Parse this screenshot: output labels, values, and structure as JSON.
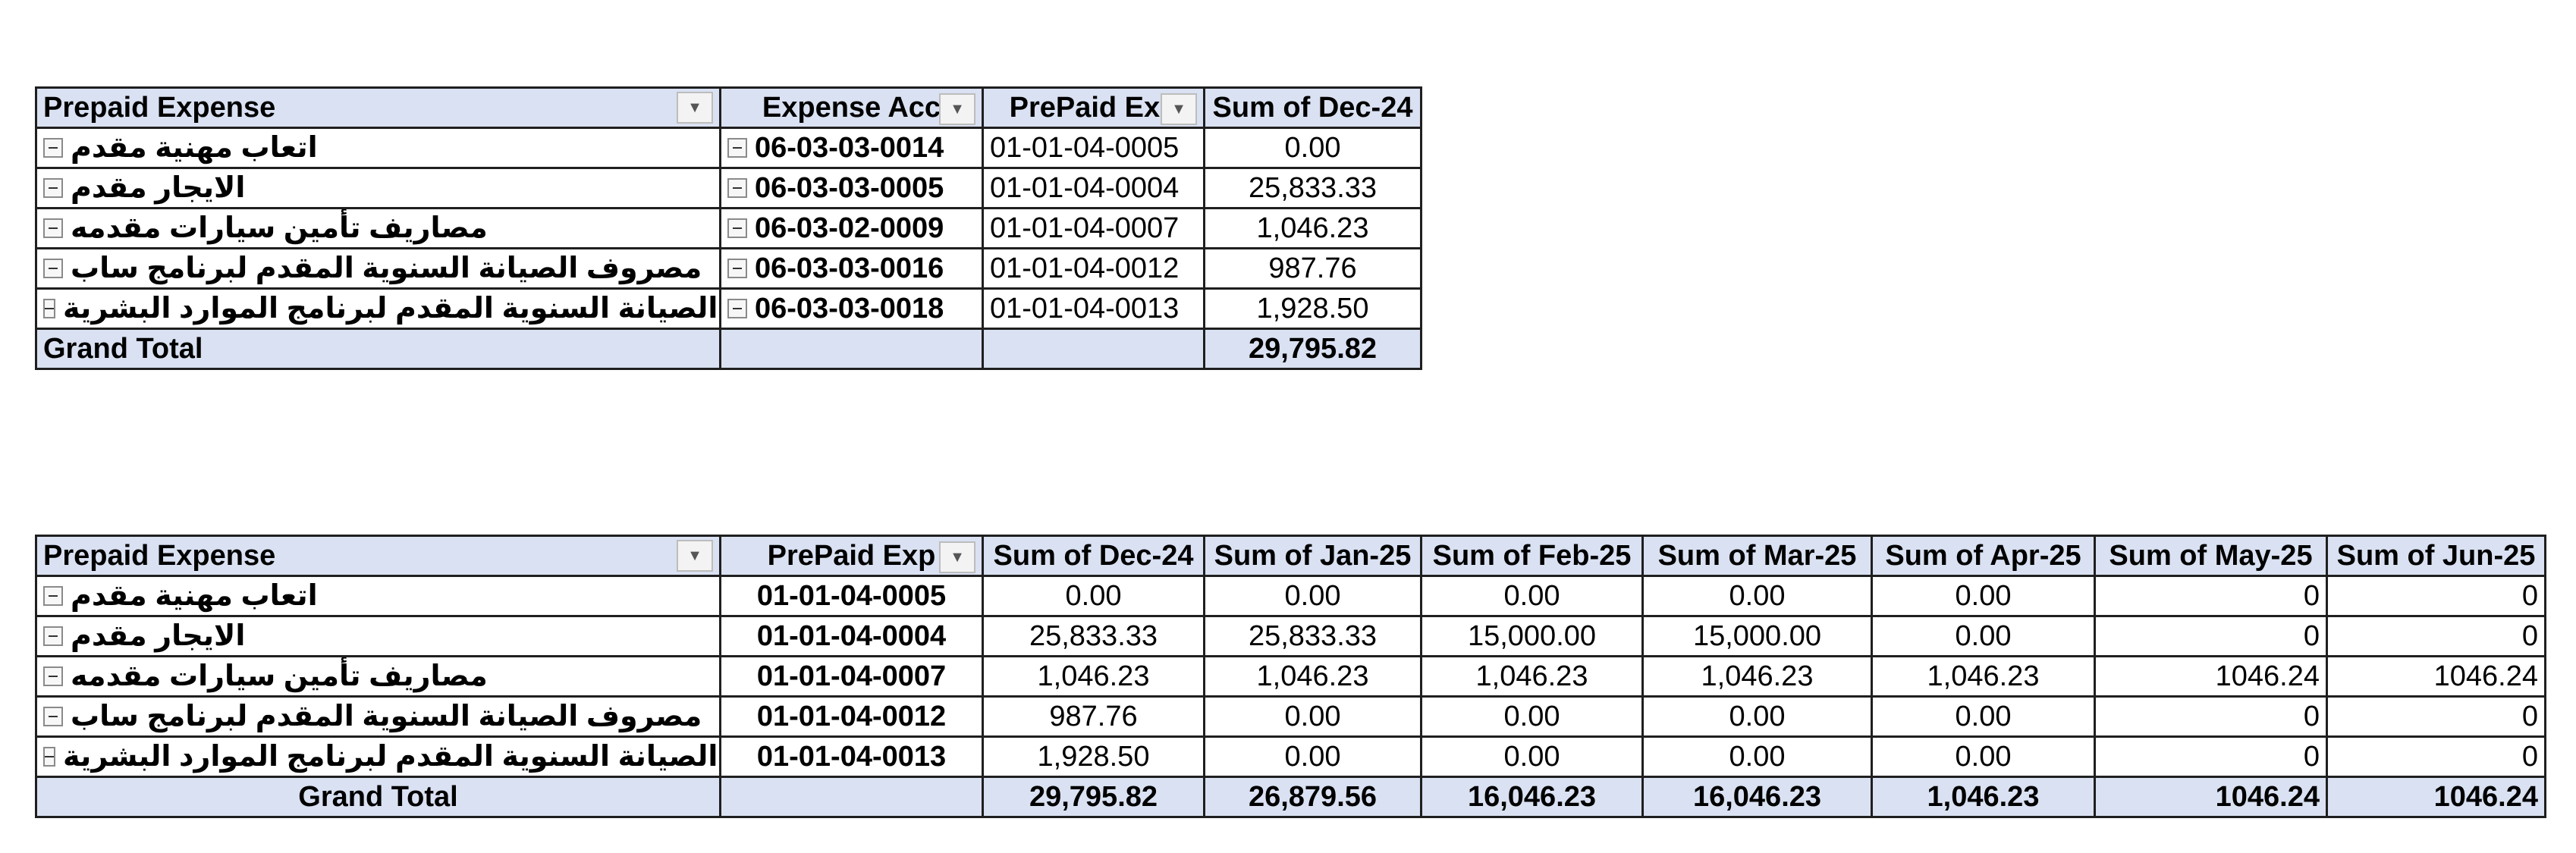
{
  "table1": {
    "headers": [
      "Prepaid Expense",
      "Expense Acc",
      "PrePaid Exp",
      "Sum of Dec-24"
    ],
    "rows": [
      {
        "name": "اتعاب مهنية مقدم",
        "acc": "06-03-03-0014",
        "prepaid": "01-01-04-0005",
        "dec24": "0.00"
      },
      {
        "name": "الايجار مقدم",
        "acc": "06-03-03-0005",
        "prepaid": "01-01-04-0004",
        "dec24": "25,833.33"
      },
      {
        "name": "مصاريف تأمين سيارات مقدمه",
        "acc": "06-03-02-0009",
        "prepaid": "01-01-04-0007",
        "dec24": "1,046.23"
      },
      {
        "name": "مصروف الصيانة السنوية  المقدم  لبرنامج ساب",
        "acc": "06-03-03-0016",
        "prepaid": "01-01-04-0012",
        "dec24": "987.76"
      },
      {
        "name": "مصروف الصيانة السنوية المقدم لبرنامج الموارد البشرية",
        "acc": "06-03-03-0018",
        "prepaid": "01-01-04-0013",
        "dec24": "1,928.50"
      }
    ],
    "total": {
      "label": "Grand Total",
      "dec24": "29,795.82"
    }
  },
  "table2": {
    "headers": [
      "Prepaid Expense",
      "PrePaid Exp",
      "Sum of Dec-24",
      "Sum of Jan-25",
      "Sum of Feb-25",
      "Sum of Mar-25",
      "Sum of Apr-25",
      "Sum of May-25",
      "Sum of Jun-25"
    ],
    "rows": [
      {
        "name": "اتعاب مهنية مقدم",
        "prepaid": "01-01-04-0005",
        "v": [
          "0.00",
          "0.00",
          "0.00",
          "0.00",
          "0.00",
          "0",
          "0"
        ]
      },
      {
        "name": "الايجار مقدم",
        "prepaid": "01-01-04-0004",
        "v": [
          "25,833.33",
          "25,833.33",
          "15,000.00",
          "15,000.00",
          "0.00",
          "0",
          "0"
        ]
      },
      {
        "name": "مصاريف تأمين سيارات مقدمه",
        "prepaid": "01-01-04-0007",
        "v": [
          "1,046.23",
          "1,046.23",
          "1,046.23",
          "1,046.23",
          "1,046.23",
          "1046.24",
          "1046.24"
        ]
      },
      {
        "name": "مصروف الصيانة السنوية  المقدم  لبرنامج ساب",
        "prepaid": "01-01-04-0012",
        "v": [
          "987.76",
          "0.00",
          "0.00",
          "0.00",
          "0.00",
          "0",
          "0"
        ]
      },
      {
        "name": "مصروف الصيانة السنوية المقدم لبرنامج الموارد البشرية",
        "prepaid": "01-01-04-0013",
        "v": [
          "1,928.50",
          "0.00",
          "0.00",
          "0.00",
          "0.00",
          "0",
          "0"
        ]
      }
    ],
    "total": {
      "label": "Grand Total",
      "v": [
        "29,795.82",
        "26,879.56",
        "16,046.23",
        "16,046.23",
        "1,046.23",
        "1046.24",
        "1046.24"
      ]
    }
  },
  "icons": {
    "dropdown": "chevron-down-icon",
    "collapse": "minus-box-icon"
  },
  "colors": {
    "header_fill": "#d9e1f2",
    "border": "#1f1f1f"
  }
}
